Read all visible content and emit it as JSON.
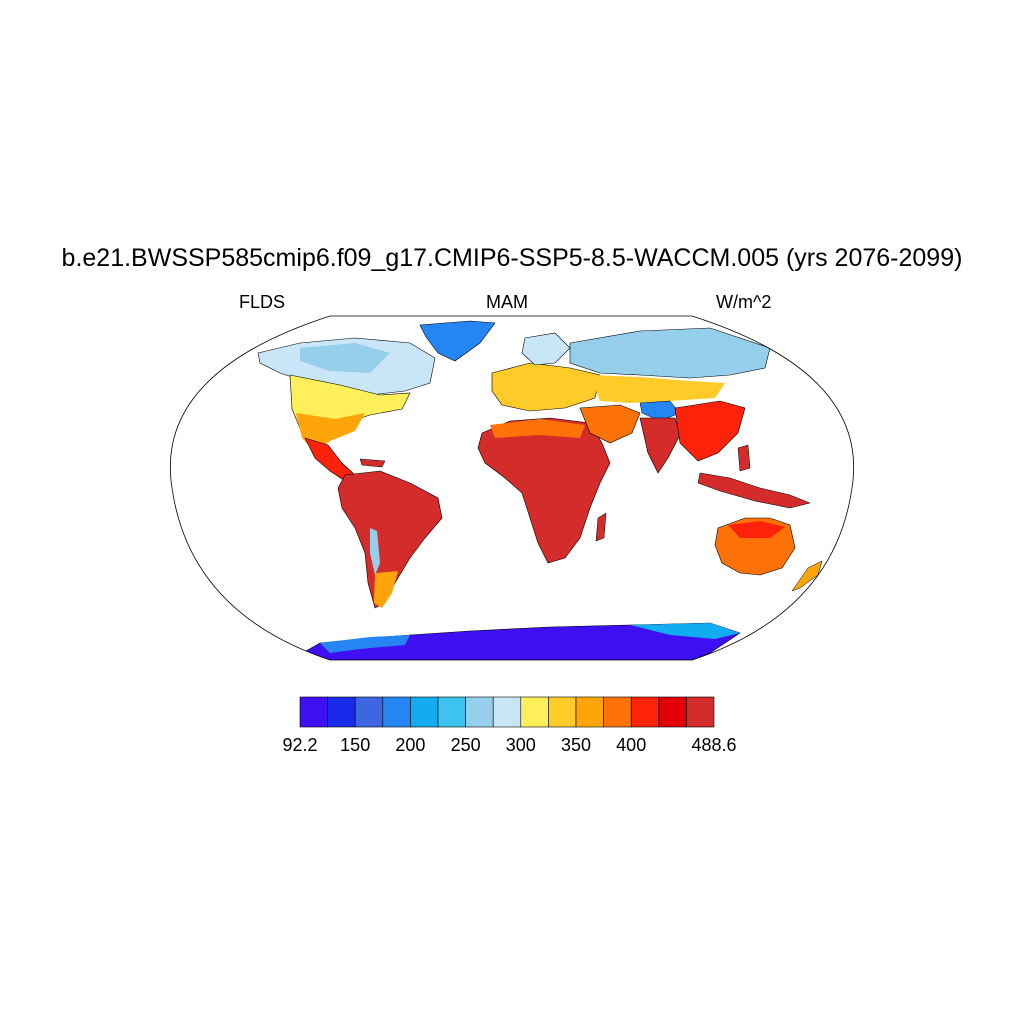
{
  "title": "b.e21.BWSSP585cmip6.f09_g17.CMIP6-SSP5-8.5-WACCM.005 (yrs 2076-2099)",
  "left_label": "FLDS",
  "center_label": "MAM",
  "right_label": "W/m^2",
  "colorbar": {
    "colors": [
      "#3e0ff2",
      "#1a2aeb",
      "#3c67de",
      "#2585f2",
      "#12acf2",
      "#3cc3f0",
      "#96cfec",
      "#c8e6f8",
      "#ffef5a",
      "#ffcb28",
      "#ffa50a",
      "#ff7208",
      "#ff220a",
      "#e00005",
      "#d42b2b"
    ],
    "tick_labels": [
      "92.2",
      "150",
      "200",
      "250",
      "300",
      "350",
      "400",
      "488.6"
    ],
    "min": 92.2,
    "max": 488.6
  },
  "map": {
    "projection": "Robinson",
    "background": "#ffffff",
    "coastline_color": "#000000"
  }
}
